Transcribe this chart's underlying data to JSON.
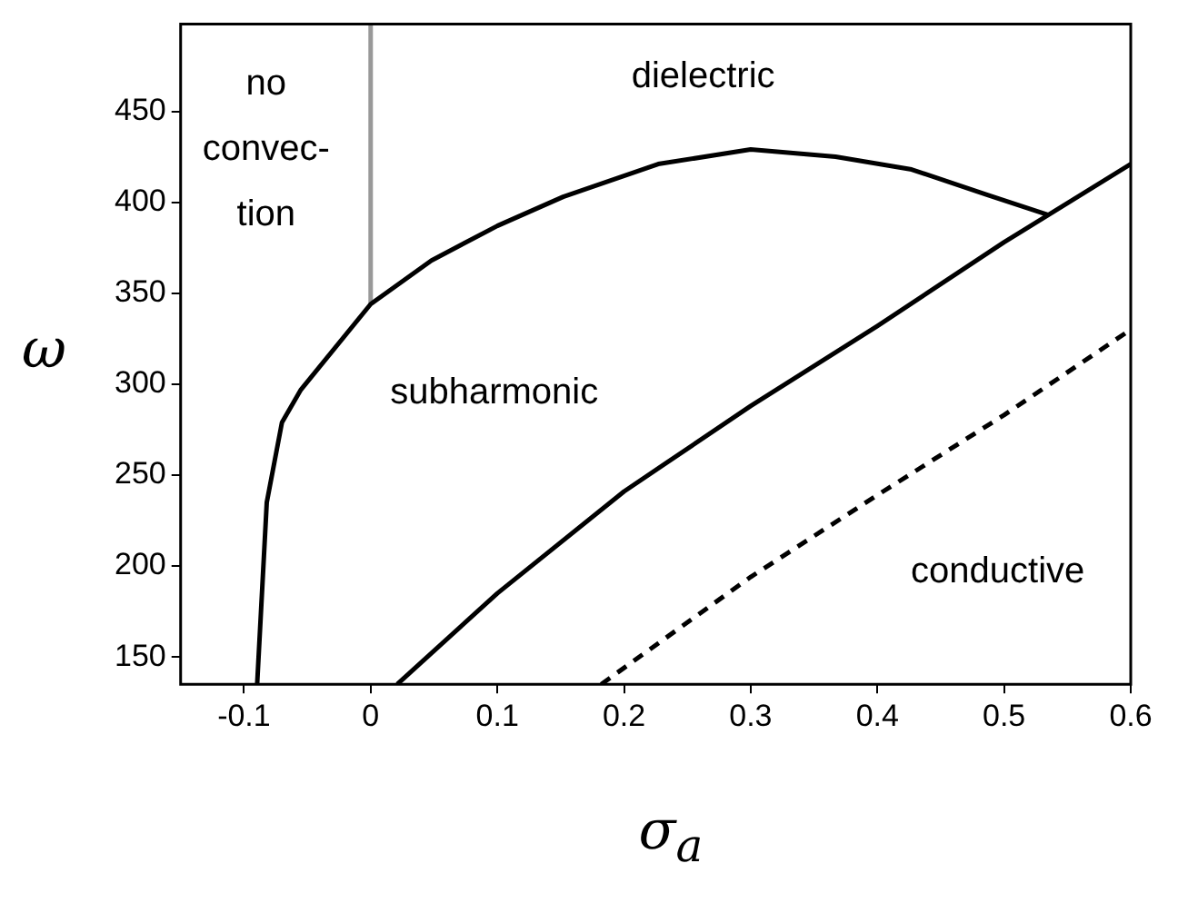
{
  "chart_data": {
    "type": "line",
    "xlabel": "σ$_{a}$",
    "ylabel": "ω",
    "xlim": [
      -0.15,
      0.6
    ],
    "xticks": [
      {
        "value": -0.1,
        "label": "-0.1"
      },
      0,
      0.1,
      0.2,
      0.3,
      0.4,
      0.5,
      0.6
    ],
    "ylim": [
      135,
      498
    ],
    "yticks": [
      150,
      200,
      250,
      300,
      350,
      400,
      450
    ],
    "grid": false,
    "legend": false,
    "marker": "none",
    "series": [
      {
        "color": "#000000",
        "line_style": "solid",
        "x": [
          -0.0896,
          -0.082,
          -0.07,
          -0.055,
          0,
          0.048,
          0.1,
          0.152,
          0.227,
          0.3,
          0.367,
          0.427,
          0.487,
          0.535
        ],
        "values": [
          135,
          235,
          279,
          297,
          344,
          368,
          387,
          403,
          421,
          429,
          425,
          418,
          404,
          393
        ]
      },
      {
        "color": "#000000",
        "line_style": "solid",
        "x": [
          0.021,
          0.1,
          0.2,
          0.3,
          0.4,
          0.5,
          0.6
        ],
        "values": [
          135,
          185,
          241,
          288,
          332,
          378,
          421
        ]
      },
      {
        "color": "#000000",
        "line_style": "dashed",
        "x": [
          0.182,
          0.3,
          0.4,
          0.5,
          0.6
        ],
        "values": [
          135,
          194,
          239,
          283,
          330
        ]
      },
      {
        "color": "#999999",
        "line_style": "solid",
        "x": [
          0,
          0
        ],
        "values": [
          344,
          498
        ]
      }
    ],
    "annotations": [
      "no\nconvec-\ntion",
      "dielectric",
      "subharmonic",
      "conductive"
    ]
  }
}
